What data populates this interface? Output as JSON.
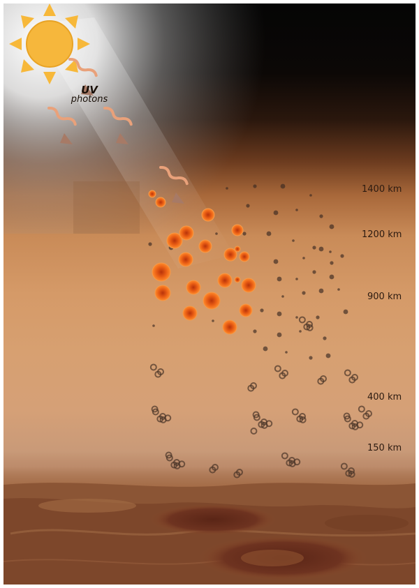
{
  "uv_label": {
    "line1": "UV",
    "line2": "photons"
  },
  "altitudes": [
    "1400 km",
    "1200 km",
    "900 km",
    "400 km",
    "150 km"
  ],
  "icons": {
    "sun": "sun-icon",
    "photon": "uv-photon-wave-icon",
    "particle": "haze-particle-icon",
    "aggregate": "aerosol-aggregate-icon"
  },
  "colors": {
    "sun": "#f6b73c",
    "photon": "#e8a27a",
    "haze_particle": "#ef6a1c",
    "sky_top": "#050505",
    "atmosphere": "#d59a68",
    "surface": "#7d4a2c"
  }
}
